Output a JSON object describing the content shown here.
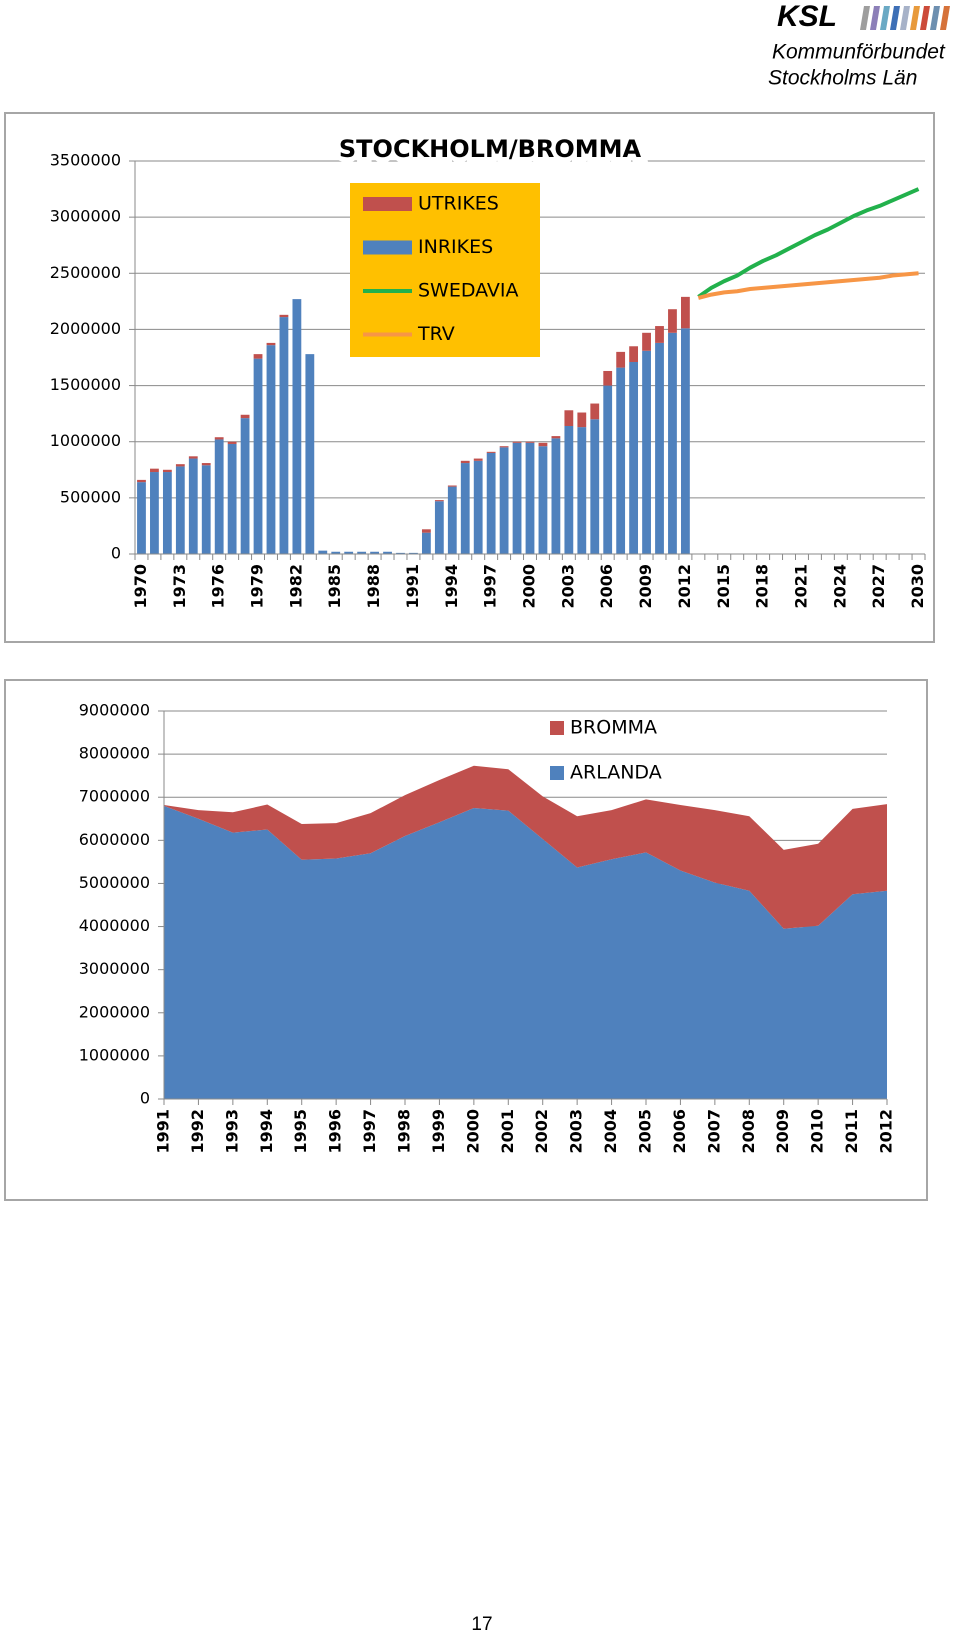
{
  "header": {
    "logo": "KSL",
    "org": "Kommunförbundet",
    "region": "Stockholms Län"
  },
  "chart_data": [
    {
      "type": "bar",
      "title": "STOCKHOLM/BROMMA",
      "stacked": true,
      "grid": true,
      "legend": "top-center",
      "legend_background": "#ffc000",
      "categories": [
        "1970",
        null,
        null,
        "1973",
        null,
        null,
        "1976",
        null,
        null,
        "1979",
        null,
        null,
        "1982",
        null,
        null,
        "1985",
        null,
        null,
        "1988",
        null,
        null,
        "1991",
        null,
        null,
        "1994",
        null,
        null,
        "1997",
        null,
        null,
        "2000",
        null,
        null,
        "2003",
        null,
        null,
        "2006",
        null,
        null,
        "2009",
        null,
        null,
        "2012",
        null,
        null,
        "2015",
        null,
        null,
        "2018",
        null,
        null,
        "2021",
        null,
        null,
        "2024",
        null,
        null,
        "2027",
        null,
        null,
        "2030"
      ],
      "ylim": [
        0,
        3500000
      ],
      "yticks": [
        0,
        500000,
        1000000,
        1500000,
        2000000,
        2500000,
        3000000,
        3500000
      ],
      "series": [
        {
          "name": "INRIKES",
          "type": "bar",
          "color": "#4f81bd",
          "values": [
            640000,
            730000,
            730000,
            780000,
            850000,
            790000,
            1020000,
            980000,
            1210000,
            1740000,
            1860000,
            2110000,
            2270000,
            1780000,
            30000,
            20000,
            20000,
            20000,
            20000,
            20000,
            10000,
            10000,
            190000,
            470000,
            600000,
            810000,
            830000,
            900000,
            950000,
            990000,
            990000,
            960000,
            1030000,
            1140000,
            1130000,
            1200000,
            1500000,
            1660000,
            1710000,
            1810000,
            1880000,
            1970000,
            2010000,
            null,
            null,
            null,
            null,
            null,
            null,
            null,
            null,
            null,
            null,
            null,
            null,
            null,
            null,
            null,
            null,
            null,
            null
          ]
        },
        {
          "name": "UTRIKES",
          "type": "bar",
          "color": "#c0504d",
          "values": [
            20000,
            30000,
            20000,
            20000,
            20000,
            20000,
            20000,
            20000,
            30000,
            40000,
            20000,
            20000,
            0,
            0,
            0,
            0,
            0,
            0,
            0,
            0,
            0,
            0,
            30000,
            10000,
            10000,
            20000,
            20000,
            10000,
            10000,
            10000,
            10000,
            30000,
            20000,
            140000,
            130000,
            140000,
            130000,
            140000,
            140000,
            160000,
            150000,
            210000,
            280000,
            null,
            null,
            null,
            null,
            null,
            null,
            null,
            null,
            null,
            null,
            null,
            null,
            null,
            null,
            null,
            null,
            null,
            null
          ]
        },
        {
          "name": "SWEDAVIA",
          "type": "line",
          "color": "#22b14c",
          "values": [
            null,
            null,
            null,
            null,
            null,
            null,
            null,
            null,
            null,
            null,
            null,
            null,
            null,
            null,
            null,
            null,
            null,
            null,
            null,
            null,
            null,
            null,
            null,
            null,
            null,
            null,
            null,
            null,
            null,
            null,
            null,
            null,
            null,
            null,
            null,
            null,
            null,
            null,
            null,
            null,
            null,
            null,
            null,
            2290000,
            2370000,
            2430000,
            2480000,
            2550000,
            2610000,
            2660000,
            2720000,
            2780000,
            2840000,
            2890000,
            2950000,
            3010000,
            3060000,
            3100000,
            3150000,
            3200000,
            3250000
          ]
        },
        {
          "name": "TRV",
          "type": "line",
          "color": "#f79646",
          "values": [
            null,
            null,
            null,
            null,
            null,
            null,
            null,
            null,
            null,
            null,
            null,
            null,
            null,
            null,
            null,
            null,
            null,
            null,
            null,
            null,
            null,
            null,
            null,
            null,
            null,
            null,
            null,
            null,
            null,
            null,
            null,
            null,
            null,
            null,
            null,
            null,
            null,
            null,
            null,
            null,
            null,
            null,
            null,
            2280000,
            2310000,
            2330000,
            2340000,
            2360000,
            2370000,
            2380000,
            2390000,
            2400000,
            2410000,
            2420000,
            2430000,
            2440000,
            2450000,
            2460000,
            2480000,
            2490000,
            2500000
          ]
        }
      ]
    },
    {
      "type": "area",
      "stacked": true,
      "grid": true,
      "legend": "top-center",
      "categories": [
        "1991",
        "1992",
        "1993",
        "1994",
        "1995",
        "1996",
        "1997",
        "1998",
        "1999",
        "2000",
        "2001",
        "2002",
        "2003",
        "2004",
        "2005",
        "2006",
        "2007",
        "2008",
        "2009",
        "2010",
        "2011",
        "2012"
      ],
      "ylim": [
        0,
        9000000
      ],
      "yticks": [
        0,
        1000000,
        2000000,
        3000000,
        4000000,
        5000000,
        6000000,
        7000000,
        8000000,
        9000000
      ],
      "series": [
        {
          "name": "ARLANDA",
          "color": "#4f81bd",
          "values": [
            6800000,
            6500000,
            6180000,
            6250000,
            5550000,
            5580000,
            5700000,
            6100000,
            6420000,
            6750000,
            6690000,
            6030000,
            5370000,
            5560000,
            5720000,
            5300000,
            5020000,
            4830000,
            3950000,
            4020000,
            4750000,
            4830000
          ]
        },
        {
          "name": "BROMMA",
          "color": "#c0504d",
          "values": [
            20000,
            200000,
            470000,
            580000,
            830000,
            820000,
            930000,
            950000,
            980000,
            980000,
            960000,
            990000,
            1190000,
            1140000,
            1230000,
            1520000,
            1680000,
            1730000,
            1830000,
            1900000,
            1980000,
            2010000
          ]
        }
      ]
    }
  ],
  "page_number": "17"
}
